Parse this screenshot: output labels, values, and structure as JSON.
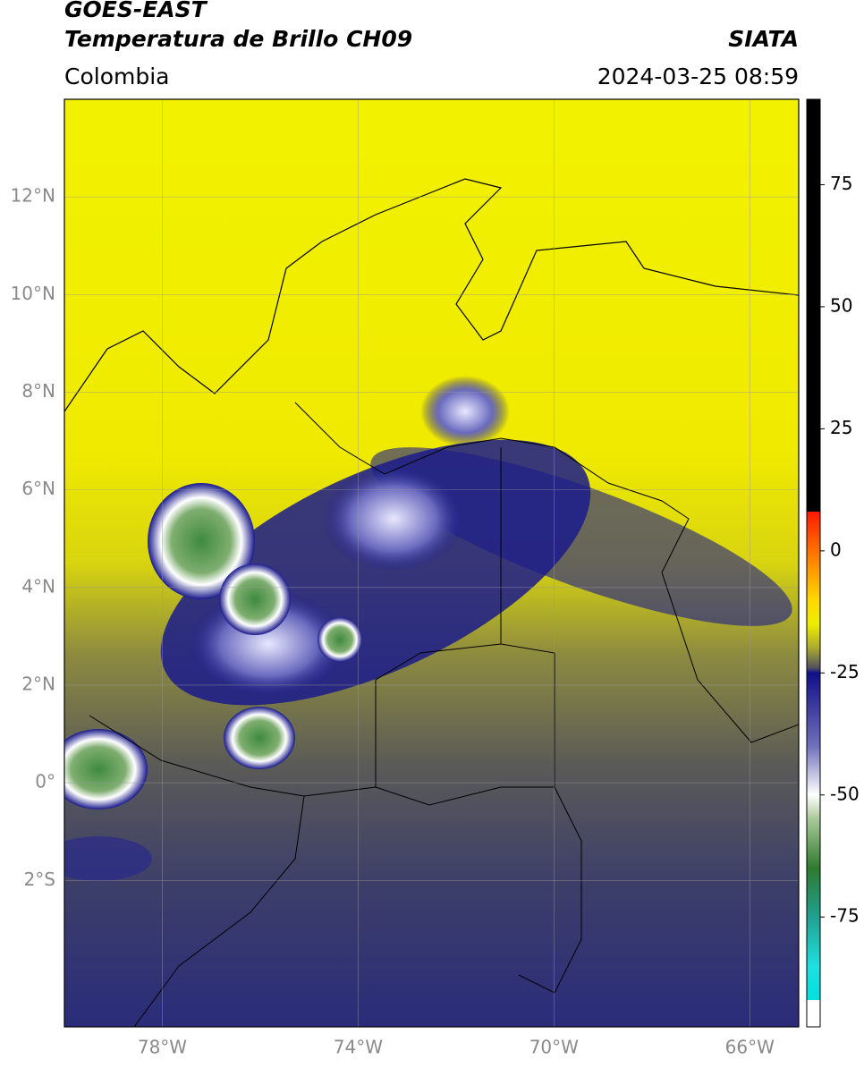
{
  "header": {
    "satellite": "GOES-EAST",
    "product": "Temperatura de Brillo CH09",
    "agency": "SIATA",
    "region": "Colombia",
    "datetime": "2024-03-25 08:59"
  },
  "map": {
    "lon_range": [
      -80,
      -65
    ],
    "lat_range": [
      -5,
      14
    ],
    "lat_ticks": [
      {
        "value": 12,
        "label": "12°N"
      },
      {
        "value": 10,
        "label": "10°N"
      },
      {
        "value": 8,
        "label": "8°N"
      },
      {
        "value": 6,
        "label": "6°N"
      },
      {
        "value": 4,
        "label": "4°N"
      },
      {
        "value": 2,
        "label": "2°N"
      },
      {
        "value": 0,
        "label": "0°"
      },
      {
        "value": -2,
        "label": "2°S"
      }
    ],
    "lon_ticks": [
      {
        "value": -78,
        "label": "78°W"
      },
      {
        "value": -74,
        "label": "74°W"
      },
      {
        "value": -70,
        "label": "70°W"
      },
      {
        "value": -66,
        "label": "66°W"
      }
    ],
    "grid": true
  },
  "colorbar": {
    "range": [
      -97.5,
      92.5
    ],
    "ticks": [
      75,
      50,
      25,
      0,
      -25,
      -50,
      -75
    ],
    "colormap": [
      {
        "value": 92.5,
        "color": "#000000"
      },
      {
        "value": 8,
        "color": "#000000"
      },
      {
        "value": 8,
        "color": "#ff1a00"
      },
      {
        "value": 0,
        "color": "#ff7000"
      },
      {
        "value": -10,
        "color": "#ffd800"
      },
      {
        "value": -15,
        "color": "#eeee00"
      },
      {
        "value": -20,
        "color": "#a8a830"
      },
      {
        "value": -24,
        "color": "#505060"
      },
      {
        "value": -25,
        "color": "#10108a"
      },
      {
        "value": -40,
        "color": "#7070bb"
      },
      {
        "value": -50,
        "color": "#ffffff"
      },
      {
        "value": -55,
        "color": "#a8c898"
      },
      {
        "value": -65,
        "color": "#2f7a2f"
      },
      {
        "value": -75,
        "color": "#20a090"
      },
      {
        "value": -85,
        "color": "#20e0e0"
      },
      {
        "value": -92,
        "color": "#00e0e0"
      },
      {
        "value": -92,
        "color": "#ffffff"
      },
      {
        "value": -97.5,
        "color": "#ffffff"
      }
    ]
  }
}
